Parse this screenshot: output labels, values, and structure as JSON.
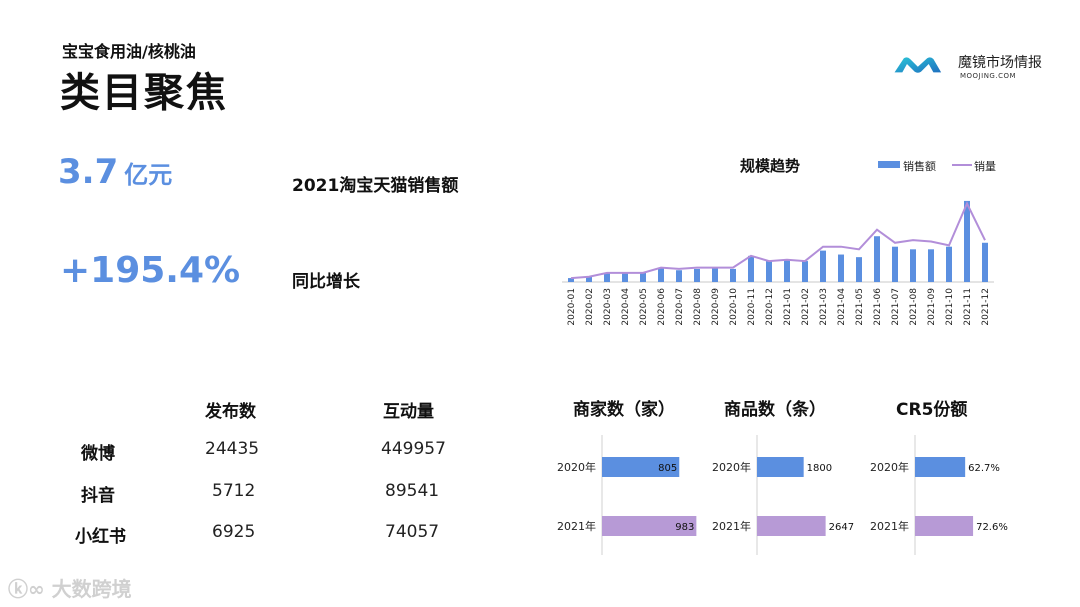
{
  "header": {
    "subtitle": "宝宝食用油/核桃油",
    "title": "类目聚焦"
  },
  "logo": {
    "name": "魔镜市场情报",
    "sub": "MOOJING.COM"
  },
  "kpis": {
    "sales": {
      "value": "3.7",
      "unit": "亿元",
      "label": "2021淘宝天猫销售额"
    },
    "growth": {
      "value": "+195.4%",
      "label": "同比增长"
    }
  },
  "social_table": {
    "headers": [
      "发布数",
      "互动量"
    ],
    "rows": [
      {
        "platform": "微博",
        "posts": "24435",
        "interactions": "449957"
      },
      {
        "platform": "抖音",
        "posts": "5712",
        "interactions": "89541"
      },
      {
        "platform": "小红书",
        "posts": "6925",
        "interactions": "74057"
      }
    ]
  },
  "watermark": "大数跨境",
  "colors": {
    "blue": "#5b8fe0",
    "purple": "#b79ad6",
    "line": "#b28ed9"
  },
  "chart_data": [
    {
      "type": "bar",
      "title": "规模趋势",
      "legend": [
        "销售额",
        "销量"
      ],
      "legend_position": "top-right",
      "categories": [
        "2020-01",
        "2020-02",
        "2020-03",
        "2020-04",
        "2020-05",
        "2020-06",
        "2020-07",
        "2020-08",
        "2020-09",
        "2020-10",
        "2020-11",
        "2020-12",
        "2021-01",
        "2021-02",
        "2021-03",
        "2021-04",
        "2021-05",
        "2021-06",
        "2021-07",
        "2021-08",
        "2021-09",
        "2021-10",
        "2021-11",
        "2021-12"
      ],
      "series": [
        {
          "name": "销售额",
          "type": "bar",
          "values": [
            3,
            4,
            7,
            7,
            7,
            11,
            9,
            10,
            11,
            10,
            20,
            16,
            17,
            16,
            24,
            21,
            19,
            35,
            27,
            25,
            25,
            27,
            62,
            30
          ]
        },
        {
          "name": "销量",
          "type": "line",
          "values": [
            3,
            4,
            7,
            7,
            7,
            11,
            10,
            11,
            11,
            11,
            20,
            16,
            17,
            16,
            27,
            27,
            25,
            40,
            30,
            32,
            31,
            28,
            60,
            32
          ]
        }
      ],
      "ylim": [
        0,
        65
      ]
    },
    {
      "type": "bar",
      "title": "商家数（家）",
      "categories": [
        "2020年",
        "2021年"
      ],
      "values": [
        805,
        983
      ],
      "value_labels": [
        "805",
        "983"
      ],
      "xlim": [
        0,
        1000
      ]
    },
    {
      "type": "bar",
      "title": "商品数（条）",
      "categories": [
        "2020年",
        "2021年"
      ],
      "values": [
        1800,
        2647
      ],
      "value_labels": [
        "1800",
        "2647"
      ],
      "xlim": [
        0,
        2700
      ]
    },
    {
      "type": "bar",
      "title": "CR5份额",
      "categories": [
        "2020年",
        "2021年"
      ],
      "values": [
        62.7,
        72.6
      ],
      "value_labels": [
        "62.7%",
        "72.6%"
      ],
      "xlim": [
        0,
        100
      ]
    }
  ]
}
